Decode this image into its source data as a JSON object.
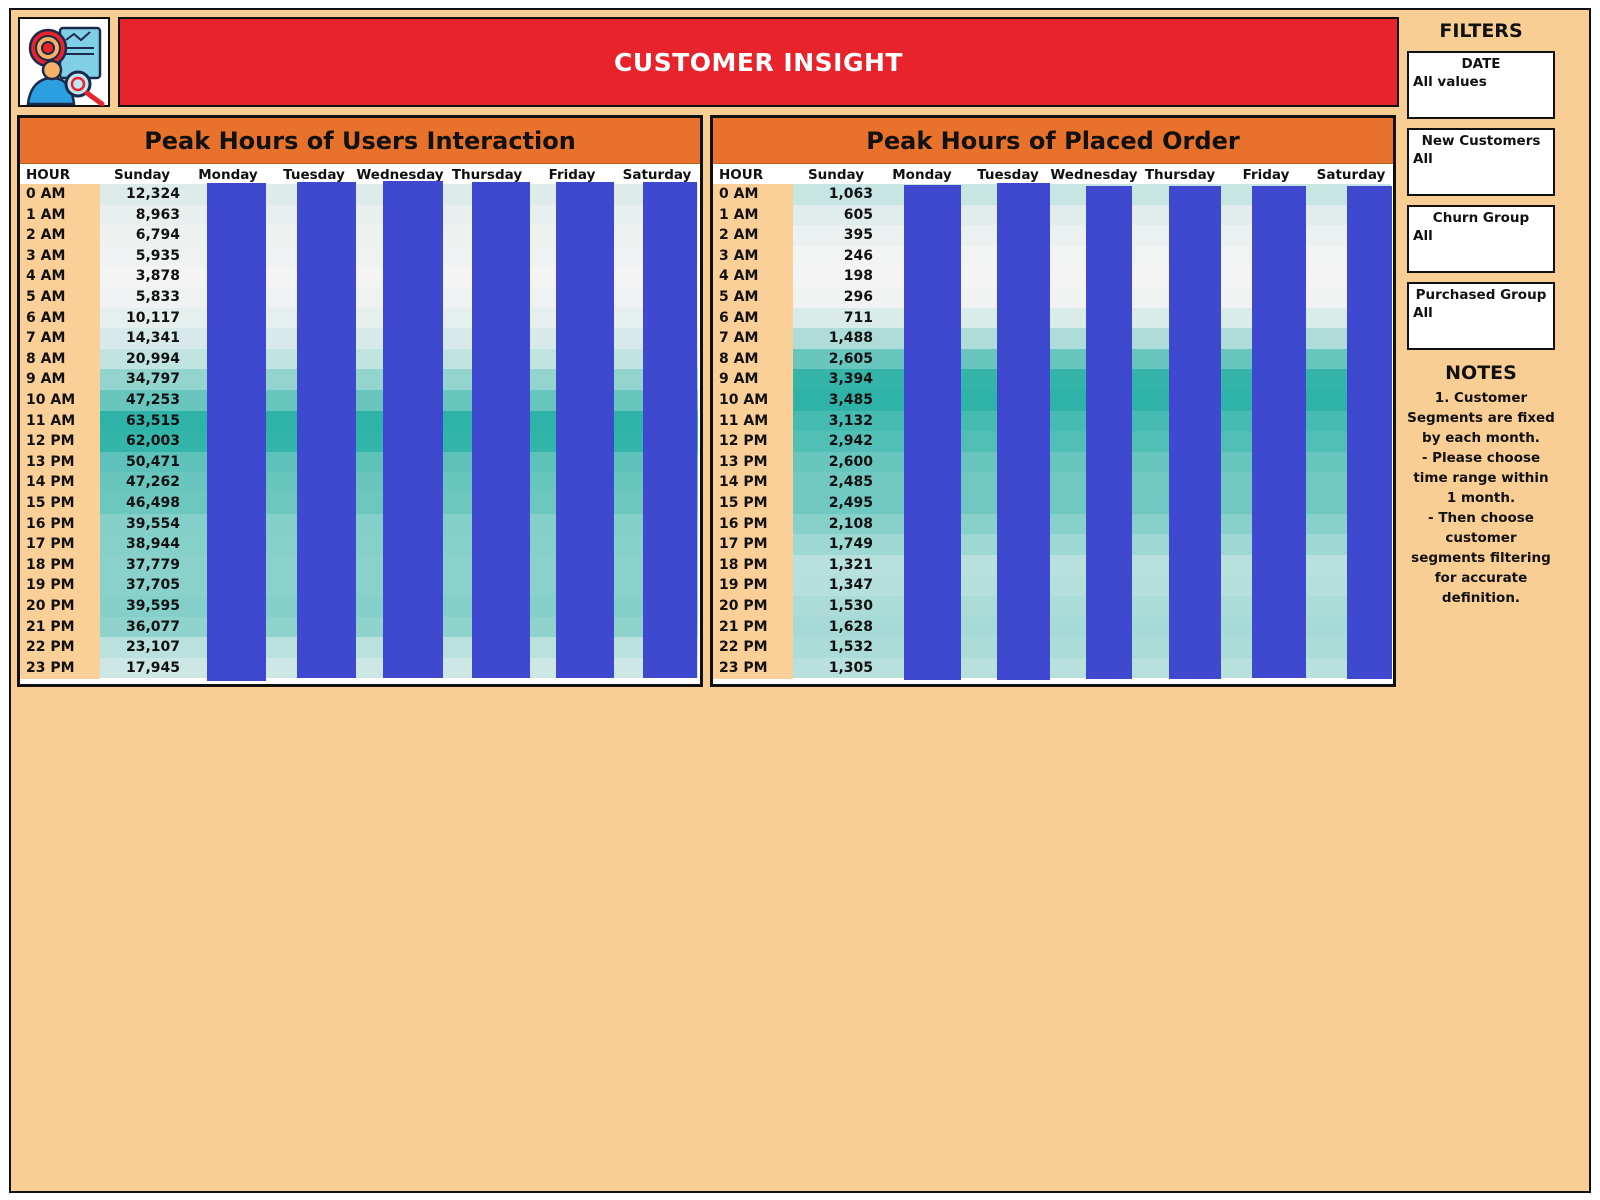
{
  "header": {
    "title": "CUSTOMER INSIGHT",
    "logo_icon": "customer-analysis-icon"
  },
  "colors": {
    "background": "#f9ce95",
    "banner": "#e8232b",
    "panel_title": "#e8722c",
    "hour_column": "#fbcf98",
    "heat_low": "#f4f4f4",
    "heat_high": "#2fb3a8",
    "masked": "#3f49d0"
  },
  "interaction_table": {
    "title": "Peak Hours of Users Interaction",
    "hour_header": "HOUR",
    "days": [
      "Sunday",
      "Monday",
      "Tuesday",
      "Wednesday",
      "Thursday",
      "Friday",
      "Saturday"
    ],
    "masked_days": [
      "Monday",
      "Tuesday",
      "Wednesday",
      "Thursday",
      "Friday",
      "Saturday"
    ],
    "hours": [
      "0 AM",
      "1 AM",
      "2 AM",
      "3 AM",
      "4 AM",
      "5 AM",
      "6 AM",
      "7 AM",
      "8 AM",
      "9 AM",
      "10 AM",
      "11 AM",
      "12 PM",
      "13 PM",
      "14 PM",
      "15 PM",
      "16 PM",
      "17 PM",
      "18 PM",
      "19 PM",
      "20 PM",
      "21 PM",
      "22 PM",
      "23 PM"
    ],
    "sunday_values": [
      "12,324",
      "8,963",
      "6,794",
      "5,935",
      "3,878",
      "5,833",
      "10,117",
      "14,341",
      "20,994",
      "34,797",
      "47,253",
      "63,515",
      "62,003",
      "50,471",
      "47,262",
      "46,498",
      "39,554",
      "38,944",
      "37,779",
      "37,705",
      "39,595",
      "36,077",
      "23,107",
      "17,945"
    ]
  },
  "orders_table": {
    "title": "Peak Hours of Placed Order",
    "hour_header": "HOUR",
    "days": [
      "Sunday",
      "Monday",
      "Tuesday",
      "Wednesday",
      "Thursday",
      "Friday",
      "Saturday"
    ],
    "masked_days": [
      "Monday",
      "Tuesday",
      "Wednesday",
      "Thursday",
      "Friday",
      "Saturday"
    ],
    "hours": [
      "0 AM",
      "1 AM",
      "2 AM",
      "3 AM",
      "4 AM",
      "5 AM",
      "6 AM",
      "7 AM",
      "8 AM",
      "9 AM",
      "10 AM",
      "11 AM",
      "12 PM",
      "13 PM",
      "14 PM",
      "15 PM",
      "16 PM",
      "17 PM",
      "18 PM",
      "19 PM",
      "20 PM",
      "21 PM",
      "22 PM",
      "23 PM"
    ],
    "sunday_values": [
      "1,063",
      "605",
      "395",
      "246",
      "198",
      "296",
      "711",
      "1,488",
      "2,605",
      "3,394",
      "3,485",
      "3,132",
      "2,942",
      "2,600",
      "2,485",
      "2,495",
      "2,108",
      "1,749",
      "1,321",
      "1,347",
      "1,530",
      "1,628",
      "1,532",
      "1,305"
    ]
  },
  "filters": {
    "heading": "FILTERS",
    "items": [
      {
        "label": "DATE",
        "value": "All values"
      },
      {
        "label": "New Customers",
        "value": "All"
      },
      {
        "label": "Churn Group",
        "value": "All"
      },
      {
        "label": "Purchased Group",
        "value": "All"
      }
    ]
  },
  "notes": {
    "heading": "NOTES",
    "lines": [
      "1. Customer Segments are fixed by each month.",
      "- Please choose time range within 1 month.",
      "- Then choose customer segments filtering for accurate definition."
    ]
  }
}
